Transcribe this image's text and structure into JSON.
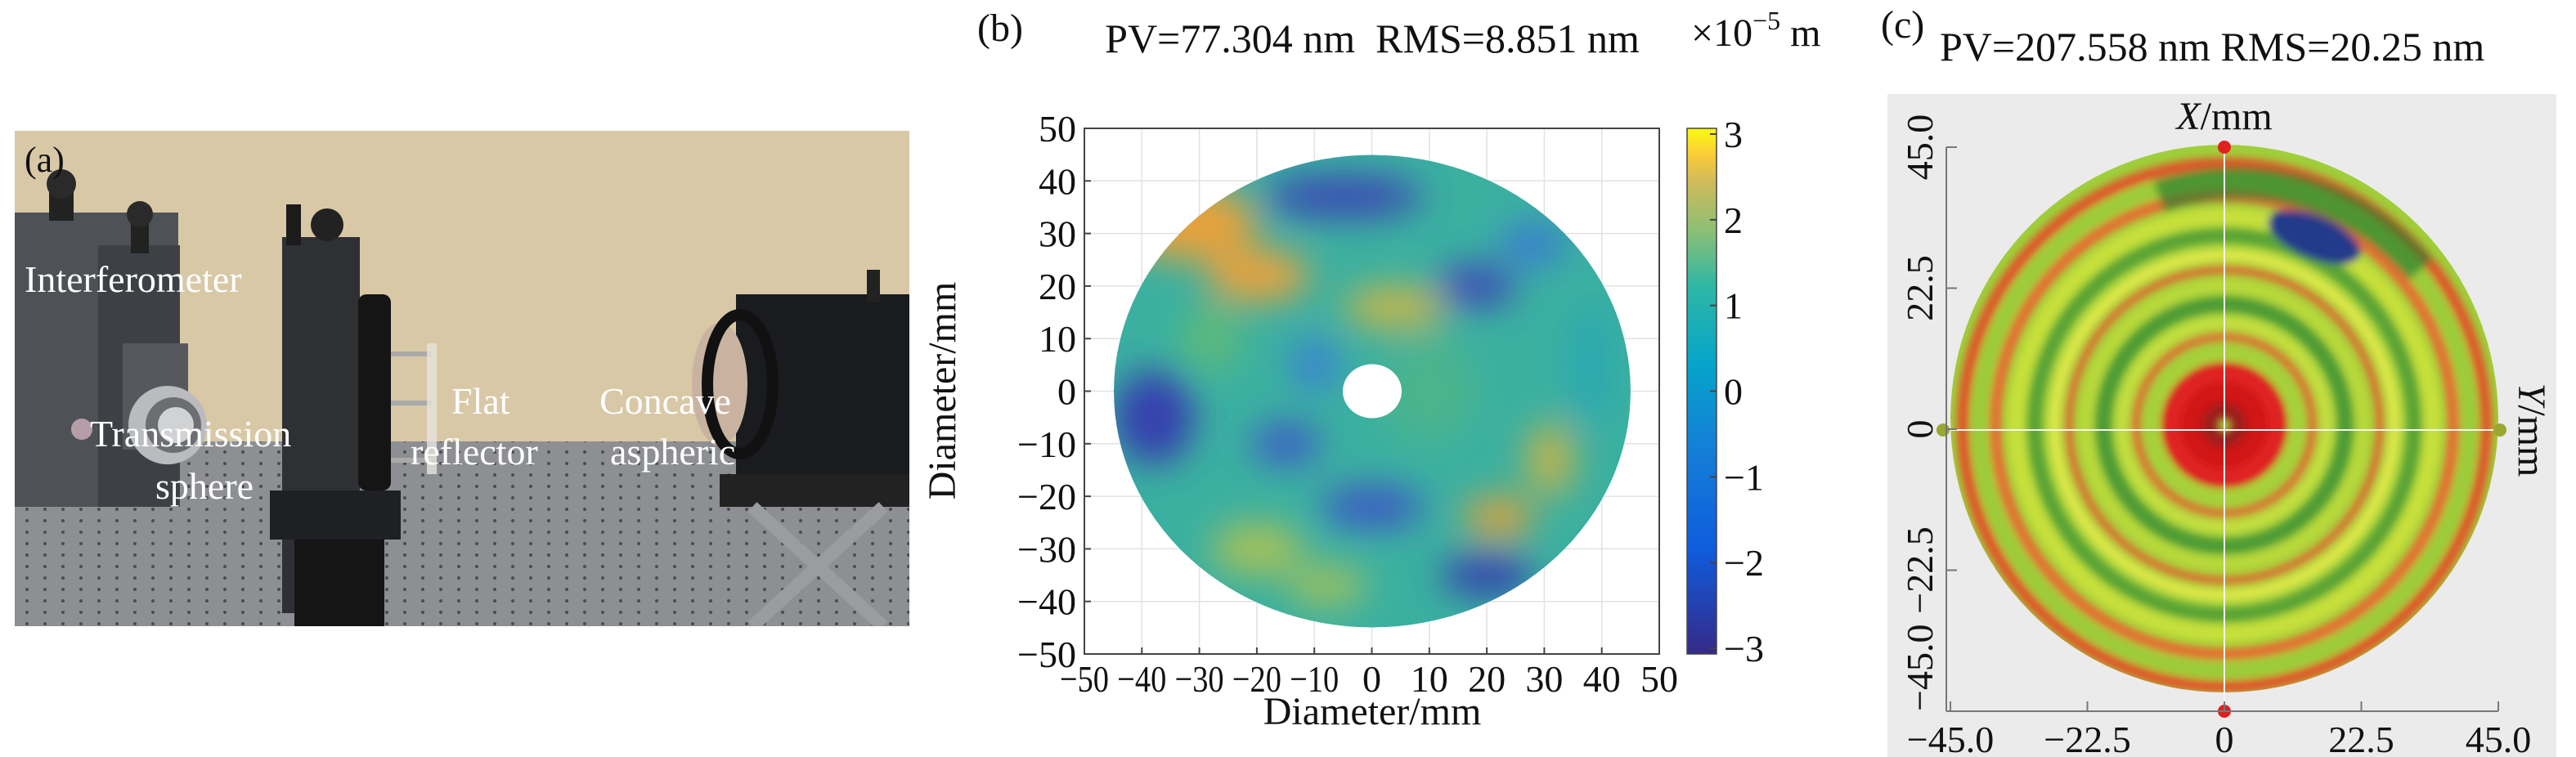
{
  "panel_a": {
    "label": "(a)",
    "annotations": {
      "interferometer": "Interferometer",
      "transmission": "Transmission",
      "sphere": "sphere",
      "flat": "Flat",
      "reflector": "reflector",
      "concave": "Concave",
      "aspheric": "aspheric"
    }
  },
  "panel_b": {
    "label": "(b)",
    "title": "PV=77.304 nm  RMS=8.851 nm",
    "xlabel": "Diameter/mm",
    "ylabel": "Diameter/mm",
    "xticks": [
      "−50",
      "−40",
      "−30",
      "−20",
      "−10",
      "0",
      "10",
      "20",
      "30",
      "40",
      "50"
    ],
    "yticks": [
      "50",
      "40",
      "30",
      "20",
      "10",
      "0",
      "−10",
      "−20",
      "−30",
      "−40",
      "−50"
    ],
    "colorbar": {
      "unit_prefix": "×10",
      "exponent": "−5",
      "unit": "m",
      "ticks": [
        "3",
        "2",
        "1",
        "0",
        "−1",
        "−2",
        "−3"
      ],
      "colormap": "parula",
      "range": [
        -3,
        3
      ]
    }
  },
  "panel_c": {
    "label": "(c)",
    "title": "PV=207.558 nm RMS=20.25 nm",
    "xlabel_var": "X",
    "xlabel_unit": "/mm",
    "ylabel_var": "Y",
    "ylabel_unit": "/mm",
    "xticks": [
      "−45.0",
      "−22.5",
      "0",
      "22.5",
      "45.0"
    ],
    "yticks": [
      "45.0",
      "22.5",
      "0",
      "−22.5",
      "−45.0"
    ],
    "colors": {
      "background": "#ebebeb",
      "high": "#e02020",
      "mid": "#d8e83a",
      "low": "#2e7d2e",
      "min": "#243a8a"
    }
  }
}
